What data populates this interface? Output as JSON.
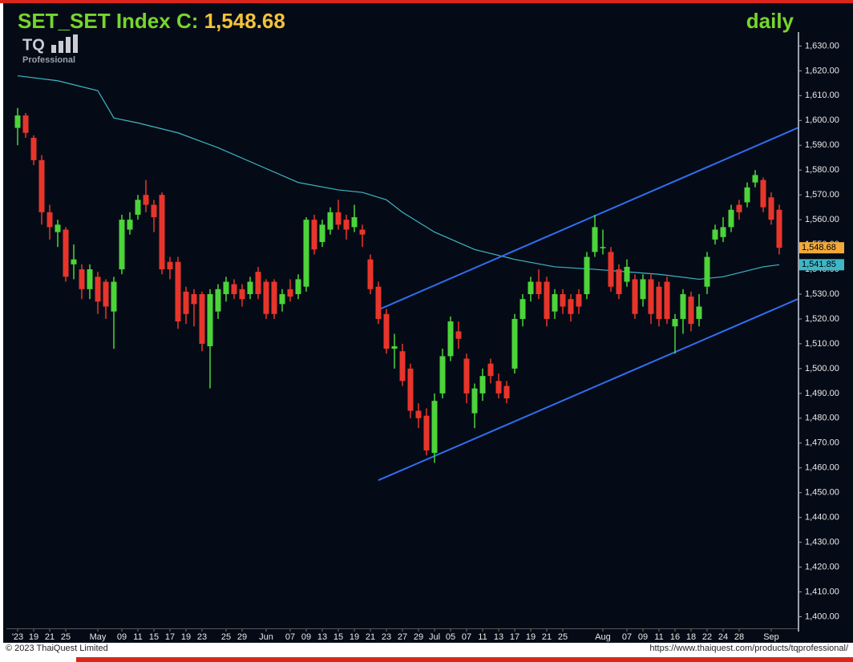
{
  "chart_data": {
    "type": "candlestick",
    "title": "SET_SET Index C:",
    "title_value": "1,548.68",
    "period": "daily",
    "logo": {
      "text": "TQ",
      "subtext": "Professional"
    },
    "up_color": "#4cd43a",
    "down_color": "#e8352b",
    "grid": false,
    "ylim": [
      1395,
      1634
    ],
    "yticks": [
      {
        "value": 1400,
        "label": "1,400.00"
      },
      {
        "value": 1410,
        "label": "1,410.00"
      },
      {
        "value": 1420,
        "label": "1,420.00"
      },
      {
        "value": 1430,
        "label": "1,430.00"
      },
      {
        "value": 1440,
        "label": "1,440.00"
      },
      {
        "value": 1450,
        "label": "1,450.00"
      },
      {
        "value": 1460,
        "label": "1,460.00"
      },
      {
        "value": 1470,
        "label": "1,470.00"
      },
      {
        "value": 1480,
        "label": "1,480.00"
      },
      {
        "value": 1490,
        "label": "1,490.00"
      },
      {
        "value": 1500,
        "label": "1,500.00"
      },
      {
        "value": 1510,
        "label": "1,510.00"
      },
      {
        "value": 1520,
        "label": "1,520.00"
      },
      {
        "value": 1530,
        "label": "1,530.00"
      },
      {
        "value": 1540,
        "label": "1,540.00"
      },
      {
        "value": 1550,
        "label": "1,550.00"
      },
      {
        "value": 1560,
        "label": "1,560.00"
      },
      {
        "value": 1570,
        "label": "1,570.00"
      },
      {
        "value": 1580,
        "label": "1,580.00"
      },
      {
        "value": 1590,
        "label": "1,590.00"
      },
      {
        "value": 1600,
        "label": "1,600.00"
      },
      {
        "value": 1610,
        "label": "1,610.00"
      },
      {
        "value": 1620,
        "label": "1,620.00"
      },
      {
        "value": 1630,
        "label": "1,630.00"
      }
    ],
    "categories": [
      "'23",
      null,
      "19",
      null,
      "21",
      null,
      "25",
      null,
      null,
      null,
      "May",
      null,
      null,
      "09",
      null,
      "11",
      null,
      "15",
      null,
      "17",
      null,
      "19",
      null,
      "23",
      null,
      null,
      "25",
      null,
      "29",
      null,
      null,
      "Jun",
      null,
      null,
      "07",
      null,
      "09",
      null,
      "13",
      null,
      "15",
      null,
      "19",
      null,
      "21",
      null,
      "23",
      null,
      "27",
      null,
      "29",
      null,
      "Jul",
      null,
      "05",
      null,
      "07",
      null,
      "11",
      null,
      "13",
      null,
      "17",
      null,
      "19",
      null,
      "21",
      null,
      "25",
      null,
      null,
      null,
      null,
      "Aug",
      null,
      null,
      "07",
      null,
      "09",
      null,
      "11",
      null,
      "16",
      null,
      "18",
      null,
      "22",
      null,
      "24",
      null,
      "28",
      null,
      null,
      null,
      "Sep",
      null
    ],
    "open": [
      1597,
      1602,
      1593,
      1584,
      1563,
      1555,
      1556,
      1542,
      1540,
      1532,
      1537,
      1535,
      1523,
      1540,
      1556,
      1562,
      1570,
      1566,
      1570,
      1543,
      1543,
      1531,
      1530,
      1530,
      1509,
      1523,
      1530,
      1534,
      1532,
      1530,
      1539,
      1535,
      1535,
      1526,
      1532,
      1530,
      1533,
      1560,
      1551,
      1556,
      1563,
      1560,
      1557,
      1556,
      1544,
      1533,
      1522,
      1508,
      1507,
      1500,
      1483,
      1481,
      1466,
      1490,
      1505,
      1515,
      1504,
      1482,
      1490,
      1502,
      1495,
      1493,
      1500,
      1520,
      1530,
      1535,
      1535,
      1523,
      1530,
      1528,
      1530,
      1530,
      1547,
      1549,
      1547,
      1540,
      1535,
      1536,
      1528,
      1536,
      1533,
      1535,
      1517,
      1520,
      1529,
      1520,
      1533,
      1552,
      1553,
      1557,
      1566,
      1567,
      1575,
      1576,
      1569,
      1564
    ],
    "high": [
      1605,
      1603,
      1594,
      1586,
      1566,
      1560,
      1557,
      1550,
      1542,
      1542,
      1539,
      1536,
      1537,
      1562,
      1563,
      1570,
      1576,
      1568,
      1571,
      1545,
      1545,
      1533,
      1532,
      1531,
      1532,
      1534,
      1537,
      1536,
      1534,
      1537,
      1541,
      1536,
      1536,
      1532,
      1536,
      1538,
      1561,
      1562,
      1560,
      1565,
      1568,
      1562,
      1566,
      1558,
      1546,
      1535,
      1524,
      1514,
      1510,
      1502,
      1486,
      1484,
      1490,
      1508,
      1521,
      1519,
      1506,
      1494,
      1500,
      1504,
      1498,
      1495,
      1522,
      1530,
      1537,
      1540,
      1537,
      1532,
      1532,
      1530,
      1532,
      1547,
      1562,
      1556,
      1549,
      1542,
      1544,
      1538,
      1538,
      1538,
      1535,
      1537,
      1522,
      1532,
      1531,
      1530,
      1547,
      1558,
      1561,
      1566,
      1568,
      1575,
      1580,
      1577,
      1571,
      1566
    ],
    "low": [
      1590,
      1593,
      1582,
      1558,
      1552,
      1549,
      1535,
      1536,
      1528,
      1528,
      1522,
      1520,
      1508,
      1538,
      1554,
      1560,
      1563,
      1555,
      1538,
      1536,
      1516,
      1518,
      1517,
      1507,
      1492,
      1520,
      1527,
      1528,
      1525,
      1528,
      1528,
      1520,
      1520,
      1523,
      1527,
      1528,
      1531,
      1546,
      1549,
      1554,
      1556,
      1552,
      1555,
      1549,
      1530,
      1518,
      1506,
      1500,
      1493,
      1480,
      1476,
      1465,
      1462,
      1488,
      1503,
      1508,
      1486,
      1476,
      1487,
      1494,
      1488,
      1486,
      1498,
      1517,
      1527,
      1528,
      1517,
      1520,
      1522,
      1519,
      1522,
      1528,
      1545,
      1546,
      1531,
      1528,
      1533,
      1520,
      1525,
      1518,
      1517,
      1518,
      1506,
      1514,
      1515,
      1517,
      1530,
      1550,
      1551,
      1555,
      1560,
      1565,
      1573,
      1563,
      1558,
      1546
    ],
    "close": [
      1602,
      1595,
      1584,
      1563,
      1557,
      1558,
      1537,
      1544,
      1532,
      1540,
      1527,
      1525,
      1535,
      1560,
      1560,
      1568,
      1566,
      1561,
      1540,
      1540,
      1519,
      1522,
      1526,
      1510,
      1530,
      1532,
      1535,
      1530,
      1528,
      1535,
      1530,
      1522,
      1522,
      1530,
      1529,
      1536,
      1560,
      1548,
      1558,
      1563,
      1558,
      1556,
      1561,
      1554,
      1532,
      1520,
      1508,
      1509,
      1495,
      1483,
      1480,
      1467,
      1487,
      1505,
      1519,
      1512,
      1490,
      1492,
      1497,
      1497,
      1490,
      1488,
      1520,
      1528,
      1535,
      1530,
      1520,
      1530,
      1525,
      1522,
      1525,
      1545,
      1557,
      1549,
      1533,
      1530,
      1541,
      1522,
      1536,
      1522,
      1520,
      1520,
      1520,
      1530,
      1518,
      1525,
      1545,
      1556,
      1557,
      1564,
      1563,
      1573,
      1578,
      1565,
      1560,
      1548.68
    ],
    "last_label": {
      "value": 1548.68,
      "label": "1,548.68",
      "color": "#f2a93b"
    },
    "moving_average": {
      "color": "#3fb6c6",
      "x": [
        0,
        5,
        10,
        12,
        15,
        20,
        25,
        30,
        35,
        40,
        43,
        46,
        48,
        52,
        57,
        62,
        67,
        72,
        80,
        85,
        88,
        93,
        95
      ],
      "values": [
        1618,
        1616,
        1612,
        1601,
        1599,
        1595,
        1589,
        1582,
        1575,
        1572,
        1571,
        1568,
        1563,
        1555,
        1548,
        1544,
        1541,
        1540,
        1538,
        1536,
        1537,
        1541,
        1541.85
      ],
      "label": {
        "value": 1541.85,
        "label": "1,541.85"
      }
    },
    "trend_lines": [
      {
        "color": "#2f6ff0",
        "x": [
          45.2,
          97.3
        ],
        "values": [
          1524,
          1597
        ]
      },
      {
        "color": "#2f6ff0",
        "x": [
          45,
          97.3
        ],
        "values": [
          1455,
          1528
        ]
      }
    ]
  },
  "footer": {
    "copyright": "© 2023 ThaiQuest Limited",
    "url": "https://www.thaiquest.com/products/tqprofessional/"
  }
}
